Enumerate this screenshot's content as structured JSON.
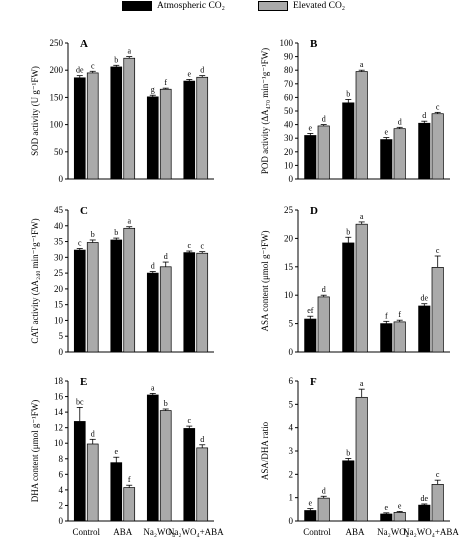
{
  "legend": [
    {
      "label": "Atmospheric CO₂",
      "color": "#000000"
    },
    {
      "label": "Elevated CO₂",
      "color": "#aaaaaa"
    }
  ],
  "colors": {
    "atmospheric": "#000000",
    "elevated": "#aaaaaa"
  },
  "chart_data": [
    {
      "type": "bar",
      "panel": "A",
      "categories": [
        "Control",
        "ABA",
        "Na2WO4",
        "Na2WO4+ABA"
      ],
      "ylabel": "SOD activity (U g⁻¹FW)",
      "ylim": [
        0,
        250
      ],
      "yticks": [
        0,
        50,
        100,
        150,
        200,
        250
      ],
      "show_xticklabels": false,
      "series": [
        {
          "name": "Atmospheric CO₂",
          "values": [
            186,
            206,
            151,
            180
          ],
          "errors": [
            4,
            3,
            3,
            3
          ],
          "letters": [
            "de",
            "b",
            "g",
            "e"
          ]
        },
        {
          "name": "Elevated CO₂",
          "values": [
            195,
            222,
            165,
            187
          ],
          "errors": [
            3,
            3,
            2,
            3
          ],
          "letters": [
            "c",
            "a",
            "f",
            "d"
          ]
        }
      ]
    },
    {
      "type": "bar",
      "panel": "B",
      "categories": [
        "Control",
        "ABA",
        "Na2WO4",
        "Na2WO4+ABA"
      ],
      "ylabel": "POD activity (ΔA₄₇₀ min⁻¹g⁻¹FW)",
      "ylim": [
        0,
        100
      ],
      "yticks": [
        0,
        10,
        20,
        30,
        40,
        50,
        60,
        70,
        80,
        90,
        100
      ],
      "show_xticklabels": false,
      "series": [
        {
          "name": "Atmospheric CO₂",
          "values": [
            32,
            56,
            29,
            41
          ],
          "errors": [
            1.5,
            2.5,
            1.5,
            1.5
          ],
          "letters": [
            "e",
            "b",
            "e",
            "d"
          ]
        },
        {
          "name": "Elevated CO₂",
          "values": [
            39,
            79,
            37,
            48
          ],
          "errors": [
            1,
            1,
            1,
            1
          ],
          "letters": [
            "d",
            "a",
            "d",
            "c"
          ]
        }
      ]
    },
    {
      "type": "bar",
      "panel": "C",
      "categories": [
        "Control",
        "ABA",
        "Na2WO4",
        "Na2WO4+ABA"
      ],
      "ylabel": "CAT activity (ΔA₂₄₀ min⁻¹g⁻¹FW)",
      "ylim": [
        0,
        45
      ],
      "yticks": [
        0,
        5,
        10,
        15,
        20,
        25,
        30,
        35,
        40,
        45
      ],
      "show_xticklabels": false,
      "series": [
        {
          "name": "Atmospheric CO₂",
          "values": [
            32.3,
            35.5,
            25,
            31.5
          ],
          "errors": [
            0.5,
            0.6,
            0.5,
            0.5
          ],
          "letters": [
            "c",
            "b",
            "d",
            "c"
          ]
        },
        {
          "name": "Elevated CO₂",
          "values": [
            34.7,
            39.2,
            27,
            31.3
          ],
          "errors": [
            0.8,
            0.5,
            1.5,
            0.5
          ],
          "letters": [
            "b",
            "a",
            "d",
            "c"
          ]
        }
      ]
    },
    {
      "type": "bar",
      "panel": "D",
      "categories": [
        "Control",
        "ABA",
        "Na2WO4",
        "Na2WO4+ABA"
      ],
      "ylabel": "ASA content (μmol g⁻¹FW)",
      "ylim": [
        0,
        25
      ],
      "yticks": [
        0,
        5,
        10,
        15,
        20,
        25
      ],
      "show_xticklabels": false,
      "series": [
        {
          "name": "Atmospheric CO₂",
          "values": [
            5.8,
            19.2,
            5.0,
            8.1
          ],
          "errors": [
            0.5,
            1.0,
            0.4,
            0.4
          ],
          "letters": [
            "ef",
            "b",
            "f",
            "de"
          ]
        },
        {
          "name": "Elevated CO₂",
          "values": [
            9.7,
            22.5,
            5.3,
            14.9
          ],
          "errors": [
            0.3,
            0.4,
            0.3,
            2.0
          ],
          "letters": [
            "d",
            "a",
            "f",
            "c"
          ]
        }
      ]
    },
    {
      "type": "bar",
      "panel": "E",
      "categories": [
        "Control",
        "ABA",
        "Na2WO4",
        "Na2WO4+ABA"
      ],
      "ylabel": "DHA content (μmol g⁻¹FW)",
      "ylim": [
        0,
        18
      ],
      "yticks": [
        0,
        2,
        4,
        6,
        8,
        10,
        12,
        14,
        16,
        18
      ],
      "show_xticklabels": true,
      "series": [
        {
          "name": "Atmospheric CO₂",
          "values": [
            12.8,
            7.5,
            16.2,
            11.9
          ],
          "errors": [
            1.8,
            0.7,
            0.2,
            0.3
          ],
          "letters": [
            "bc",
            "e",
            "a",
            "c"
          ]
        },
        {
          "name": "Elevated CO₂",
          "values": [
            9.9,
            4.3,
            14.2,
            9.4
          ],
          "errors": [
            0.6,
            0.3,
            0.2,
            0.4
          ],
          "letters": [
            "d",
            "f",
            "b",
            "d"
          ]
        }
      ]
    },
    {
      "type": "bar",
      "panel": "F",
      "categories": [
        "Control",
        "ABA",
        "Na2WO4",
        "Na2WO4+ABA"
      ],
      "ylabel": "ASA/DHA ratio",
      "ylim": [
        0,
        6
      ],
      "yticks": [
        0,
        1,
        2,
        3,
        4,
        5,
        6
      ],
      "show_xticklabels": true,
      "series": [
        {
          "name": "Atmospheric CO₂",
          "values": [
            0.45,
            2.58,
            0.3,
            0.68
          ],
          "errors": [
            0.08,
            0.1,
            0.05,
            0.05
          ],
          "letters": [
            "e",
            "b",
            "e",
            "de"
          ]
        },
        {
          "name": "Elevated CO₂",
          "values": [
            0.98,
            5.3,
            0.37,
            1.57
          ],
          "errors": [
            0.08,
            0.35,
            0.04,
            0.18
          ],
          "letters": [
            "d",
            "a",
            "e",
            "c"
          ]
        }
      ]
    }
  ]
}
